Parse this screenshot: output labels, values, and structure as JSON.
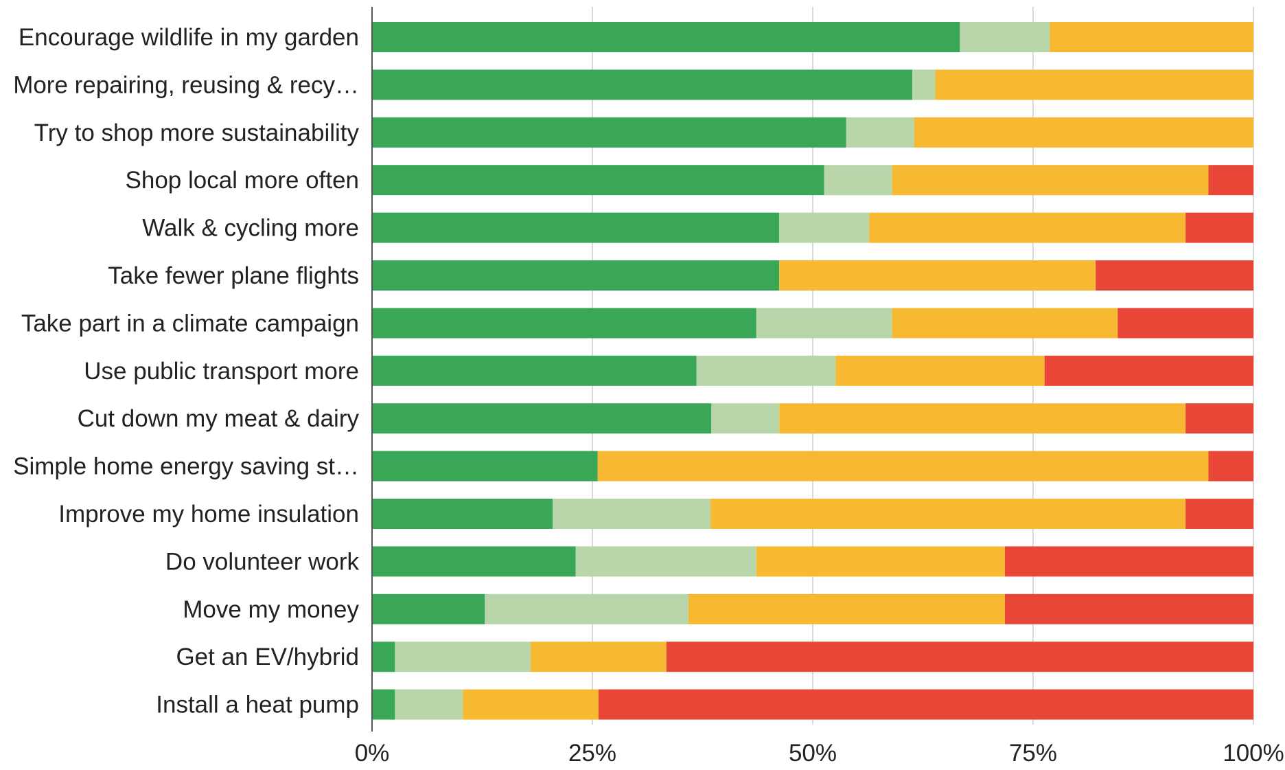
{
  "chart_data": {
    "type": "bar",
    "orientation": "horizontal",
    "stacked": "percent",
    "title": "",
    "xlabel": "",
    "ylabel": "",
    "xlim": [
      0,
      100
    ],
    "grid": true,
    "legend": "none",
    "x_ticks": [
      "0%",
      "25%",
      "50%",
      "75%",
      "100%"
    ],
    "categories": [
      "Encourage wildlife in my garden",
      "More repairing, reusing & recy…",
      "Try to shop more sustainability",
      "Shop local more often",
      "Walk & cycling more",
      "Take fewer plane flights",
      "Take part in a climate campaign",
      "Use public transport more",
      "Cut down my meat & dairy",
      "Simple home energy saving st…",
      "Improve my home insulation",
      "Do volunteer work",
      "Move my money",
      "Get an EV/hybrid",
      "Install a heat pump"
    ],
    "series": [
      {
        "color": "#3aa757",
        "values": [
          66.7,
          61.3,
          53.8,
          51.3,
          46.2,
          46.2,
          43.6,
          36.8,
          38.5,
          25.6,
          20.5,
          23.1,
          12.8,
          2.6,
          2.6
        ]
      },
      {
        "color": "#b8d6aa",
        "values": [
          10.2,
          2.6,
          7.7,
          7.7,
          10.2,
          0.0,
          15.4,
          15.8,
          7.7,
          0.0,
          17.9,
          20.5,
          23.1,
          15.4,
          7.7
        ]
      },
      {
        "color": "#f8b932",
        "values": [
          23.1,
          36.1,
          38.5,
          35.9,
          35.9,
          35.9,
          25.6,
          23.7,
          46.1,
          69.3,
          53.9,
          28.2,
          35.9,
          15.4,
          15.4
        ]
      },
      {
        "color": "#e84637",
        "values": [
          0.0,
          0.0,
          0.0,
          5.1,
          7.7,
          17.9,
          15.4,
          23.7,
          7.7,
          5.1,
          7.7,
          28.2,
          28.2,
          66.6,
          74.3
        ]
      }
    ]
  }
}
